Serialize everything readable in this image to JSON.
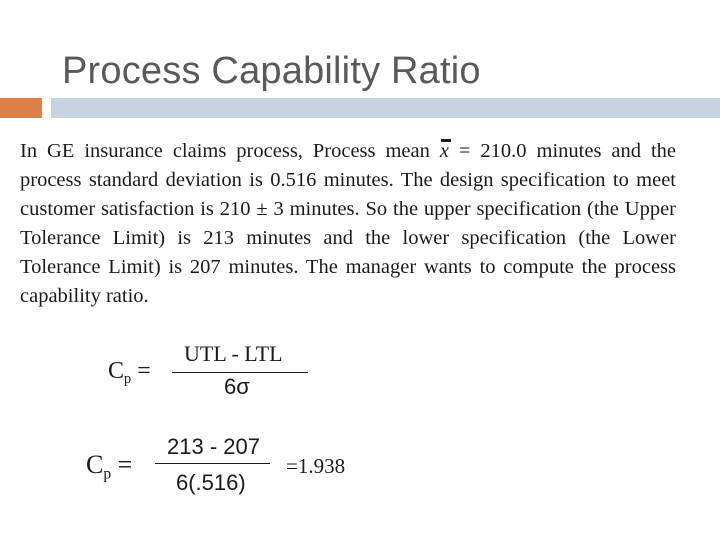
{
  "slide": {
    "title": "Process Capability Ratio",
    "paragraph": {
      "before_x": "In GE insurance claims process, Process mean ",
      "x_symbol": "x",
      "after_x": " = 210.0 minutes and the process standard deviation is 0.516 minutes. The design specification to meet customer satisfaction is 210 ± 3 minutes. So the upper specification (the Upper Tolerance Limit) is 213 minutes and the lower specification (the Lower Tolerance Limit) is 207 minutes. The manager wants to compute the process capability ratio."
    },
    "formula1": {
      "lhs_base": "C",
      "lhs_sub": "p",
      "equals": " =",
      "numerator": "UTL - LTL",
      "denominator": "6σ"
    },
    "formula2": {
      "lhs_base": "C",
      "lhs_sub": "p",
      "equals": " =",
      "numerator": "213 - 207",
      "denominator": "6(.516)",
      "result": "=1.938"
    }
  },
  "colors": {
    "accent_orange": "#dd8047",
    "accent_blue": "#c5d3e3",
    "title_gray": "#595959"
  }
}
